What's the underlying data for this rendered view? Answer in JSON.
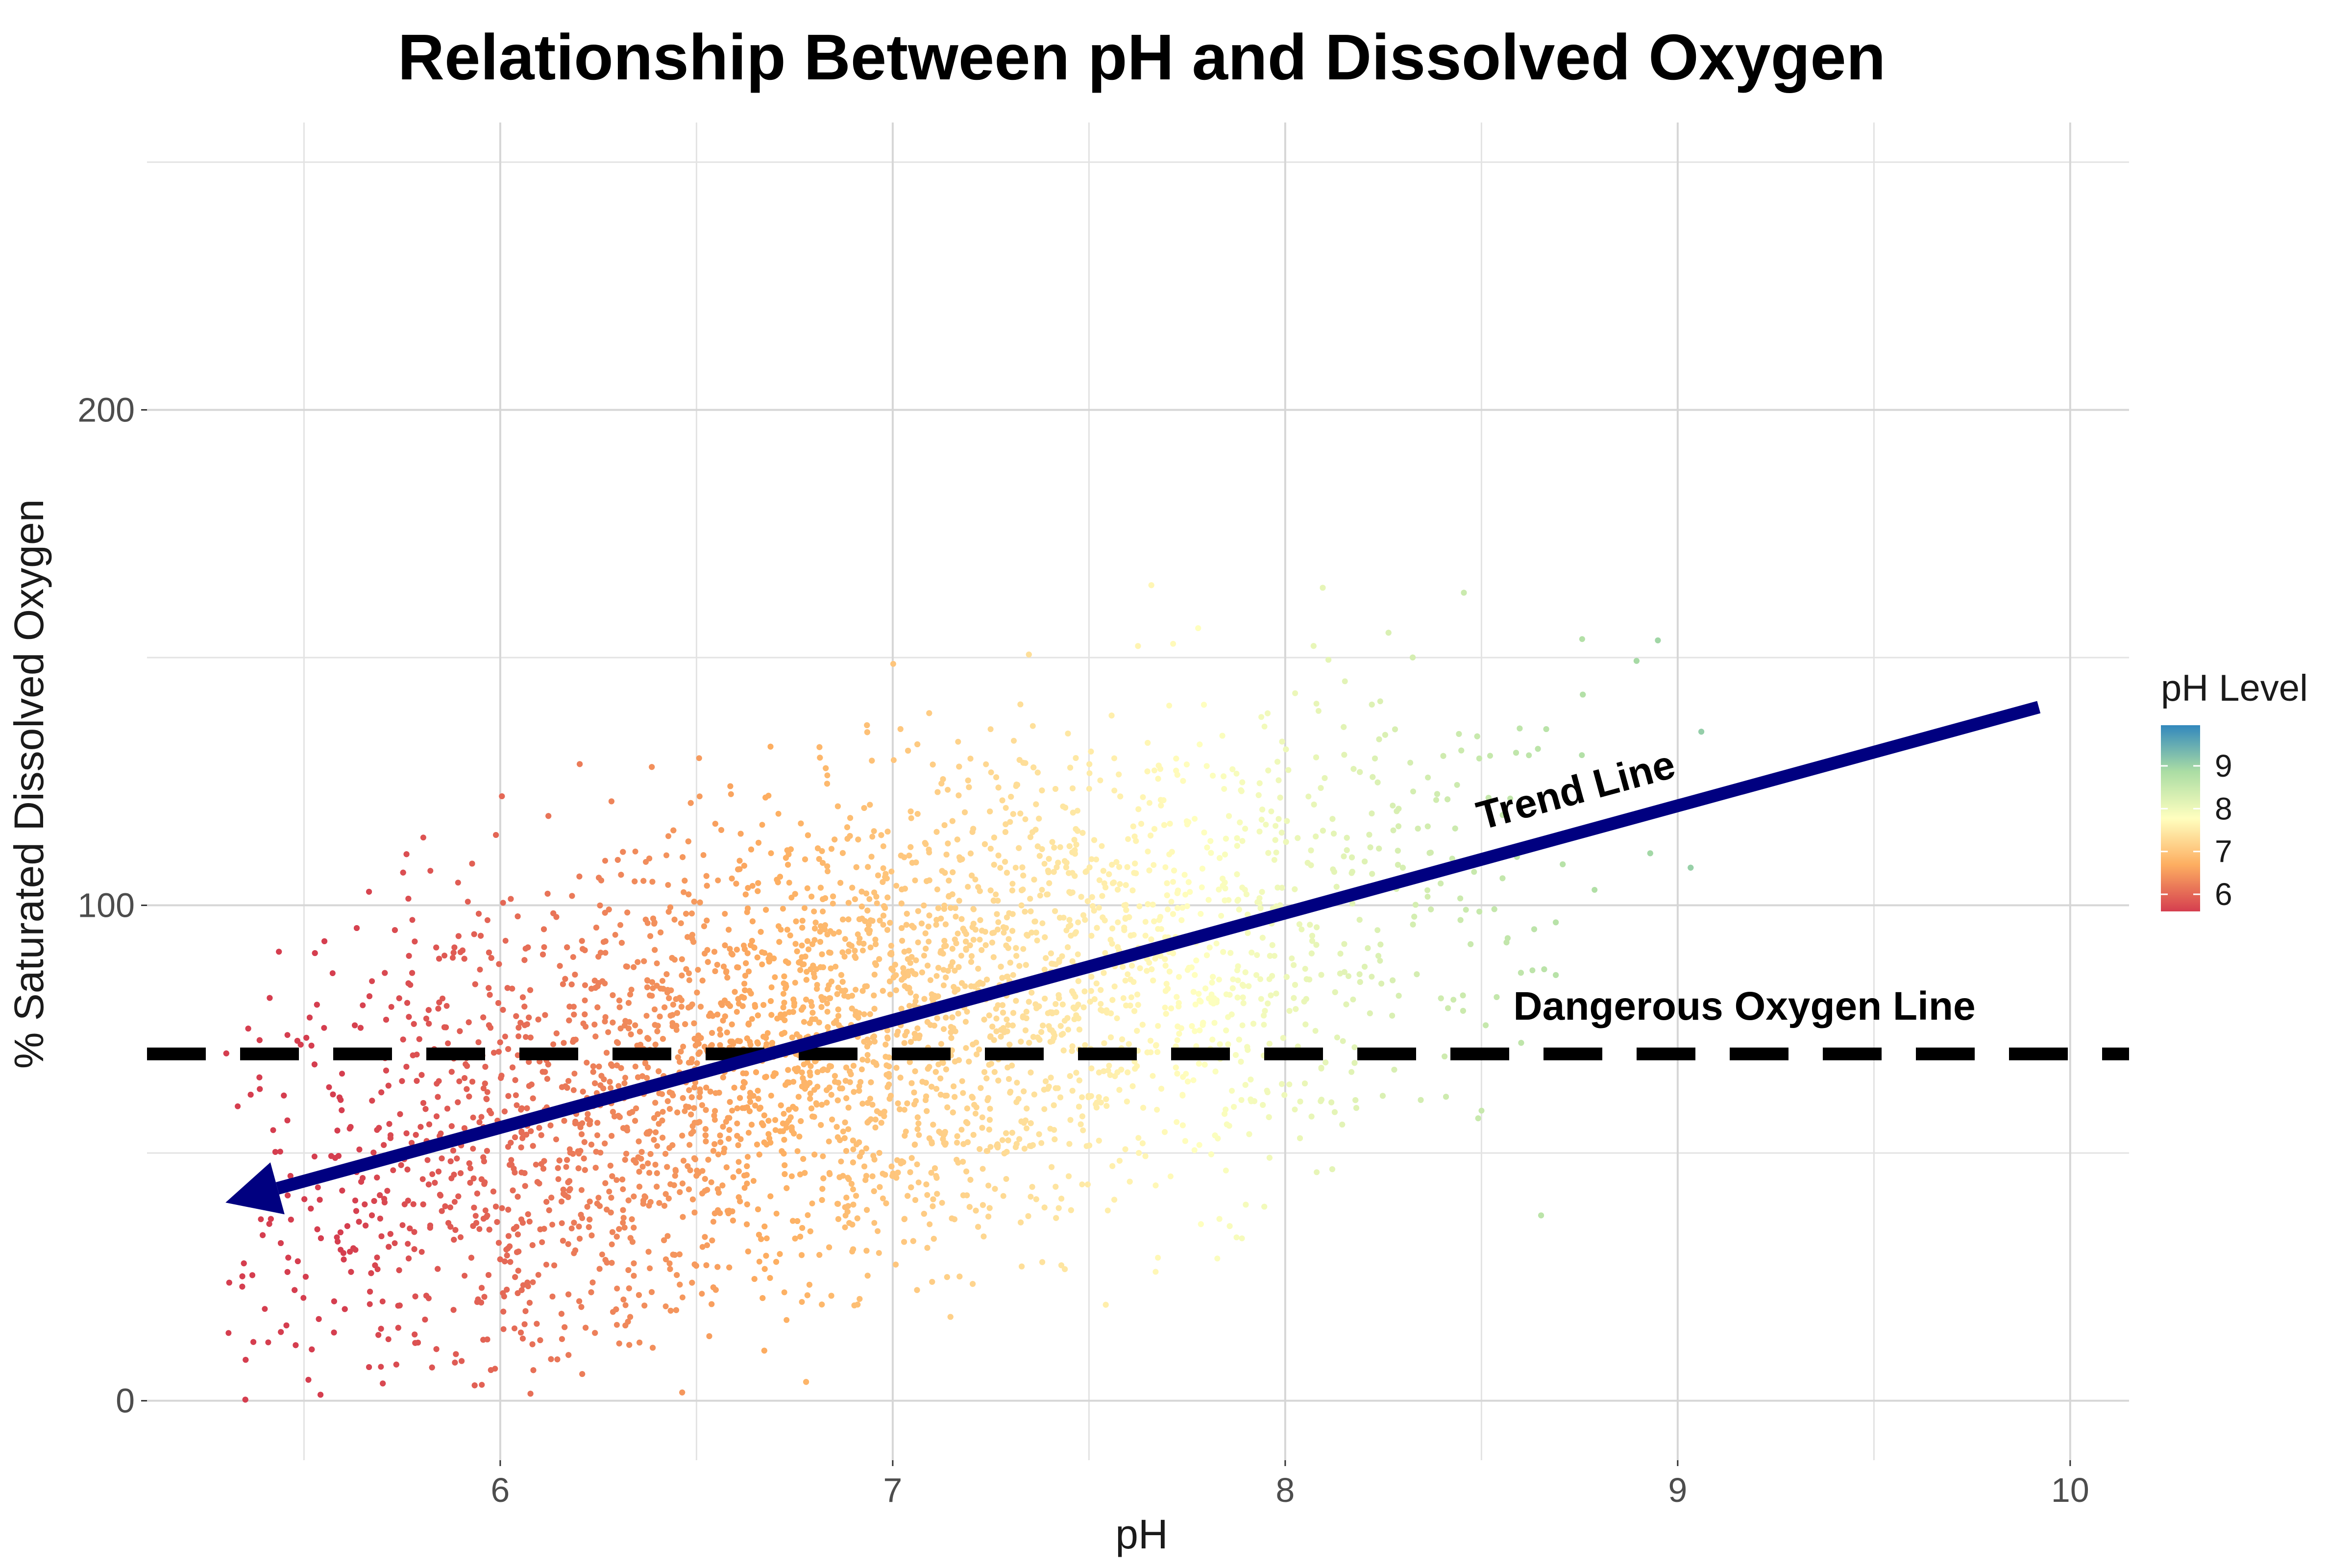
{
  "chart_data": {
    "type": "scatter",
    "title": "Relationship Between pH and Dissolved Oxygen",
    "xlabel": "pH",
    "ylabel": "% Saturated Dissolved Oxygen",
    "xlim": [
      5.1,
      10.15
    ],
    "ylim": [
      -12,
      258
    ],
    "x_ticks": [
      6,
      7,
      8,
      9,
      10
    ],
    "y_ticks": [
      0,
      100,
      200
    ],
    "x_tick_labels": [
      "6",
      "7",
      "8",
      "9",
      "10"
    ],
    "y_tick_labels": [
      "0",
      "100",
      "200"
    ],
    "grid": true,
    "point_cloud": {
      "x_range": [
        5.3,
        9.95
      ],
      "center_line": {
        "slope": 22,
        "intercept": -78
      },
      "spread": 45,
      "y_min": 0
    },
    "trend_line": {
      "label": "Trend Line",
      "color": "#000080",
      "start": {
        "x": 9.92,
        "y": 140
      },
      "end": {
        "x": 5.3,
        "y": 40
      },
      "arrow_at": "end"
    },
    "reference_line": {
      "label": "Dangerous Oxygen Line",
      "y": 70,
      "style": "dashed",
      "color": "#000000"
    },
    "legend": {
      "title": "pH Level",
      "labels": [
        "9",
        "8",
        "7",
        "6"
      ],
      "values": [
        9,
        8,
        7,
        6
      ],
      "placement": "right",
      "type": "colorbar",
      "range": [
        5.6,
        9.95
      ],
      "colors": {
        "low": "#d53e4f",
        "mid_low": "#fdae61",
        "mid": "#ffffbf",
        "mid_high": "#abdda4",
        "high": "#3288bd"
      }
    }
  }
}
